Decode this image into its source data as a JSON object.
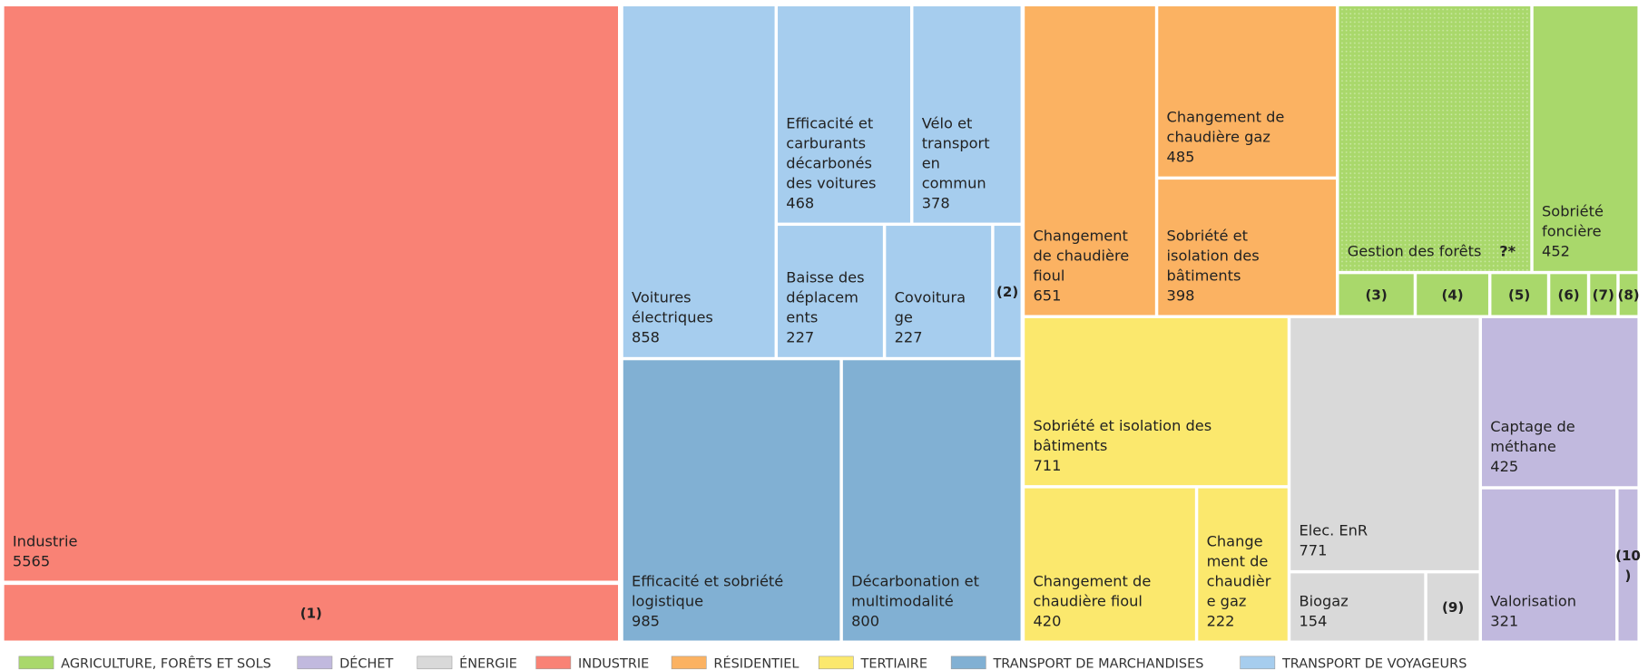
{
  "chart_data": {
    "type": "treemap",
    "groups": [
      {
        "name": "AGRICULTURE, FORÊTS ET SOLS",
        "color": "#a9d86b",
        "nodes": [
          {
            "label": [
              "Gestion des forêts"
            ],
            "value_label": "?*"
          },
          {
            "label": [
              "Sobriété",
              "foncière"
            ],
            "value": 452
          },
          {
            "label": [
              "(3)"
            ]
          },
          {
            "label": [
              "(4)"
            ]
          },
          {
            "label": [
              "(5)"
            ]
          },
          {
            "label": [
              "(6)"
            ]
          },
          {
            "label": [
              "(7)"
            ]
          },
          {
            "label": [
              "(8)"
            ]
          }
        ]
      },
      {
        "name": "DÉCHET",
        "color": "#c1b9de",
        "nodes": [
          {
            "label": [
              "Captage de",
              "méthane"
            ],
            "value": 425
          },
          {
            "label": [
              "Valorisation"
            ],
            "value": 321
          },
          {
            "label": [
              "(10",
              ")"
            ]
          }
        ]
      },
      {
        "name": "ÉNERGIE",
        "color": "#d9d9d9",
        "nodes": [
          {
            "label": [
              "Elec. EnR"
            ],
            "value": 771
          },
          {
            "label": [
              "Biogaz"
            ],
            "value": 154
          },
          {
            "label": [
              "(9)"
            ]
          }
        ]
      },
      {
        "name": "INDUSTRIE",
        "color": "#f98275",
        "nodes": [
          {
            "label": [
              "Industrie"
            ],
            "value": 5565
          },
          {
            "label": [
              "(1)"
            ]
          }
        ]
      },
      {
        "name": "RÉSIDENTIEL",
        "color": "#fbb262",
        "nodes": [
          {
            "label": [
              "Changement",
              "de chaudière",
              "fioul"
            ],
            "value": 651
          },
          {
            "label": [
              "Changement de",
              "chaudière  gaz"
            ],
            "value": 485
          },
          {
            "label": [
              "Sobriété et",
              "isolation des",
              "bâtiments"
            ],
            "value": 398
          }
        ]
      },
      {
        "name": "TERTIAIRE",
        "color": "#fbe86d",
        "nodes": [
          {
            "label": [
              "Sobriété et isolation des",
              "bâtiments"
            ],
            "value": 711
          },
          {
            "label": [
              "Changement de",
              "chaudière  fioul"
            ],
            "value": 420
          },
          {
            "label": [
              "Change",
              "ment de",
              "chaudièr",
              "e gaz"
            ],
            "value": 222
          }
        ]
      },
      {
        "name": "TRANSPORT DE MARCHANDISES",
        "color": "#81b0d3",
        "nodes": [
          {
            "label": [
              "Efficacité et sobriété",
              "logistique"
            ],
            "value": 985
          },
          {
            "label": [
              "Décarbonation et",
              "multimodalité"
            ],
            "value": 800
          }
        ]
      },
      {
        "name": "TRANSPORT DE VOYAGEURS",
        "color": "#a6cdee",
        "nodes": [
          {
            "label": [
              "Voitures",
              "électriques"
            ],
            "value": 858
          },
          {
            "label": [
              "Efficacité et",
              "carburants",
              "décarbonés",
              "des voitures"
            ],
            "value": 468
          },
          {
            "label": [
              "Vélo et",
              "transport",
              "en",
              "commun"
            ],
            "value": 378
          },
          {
            "label": [
              "Baisse des",
              "déplacem",
              "ents"
            ],
            "value": 227
          },
          {
            "label": [
              "Covoitura",
              "ge"
            ],
            "value": 227
          },
          {
            "label": [
              "(2)"
            ]
          }
        ]
      }
    ]
  }
}
